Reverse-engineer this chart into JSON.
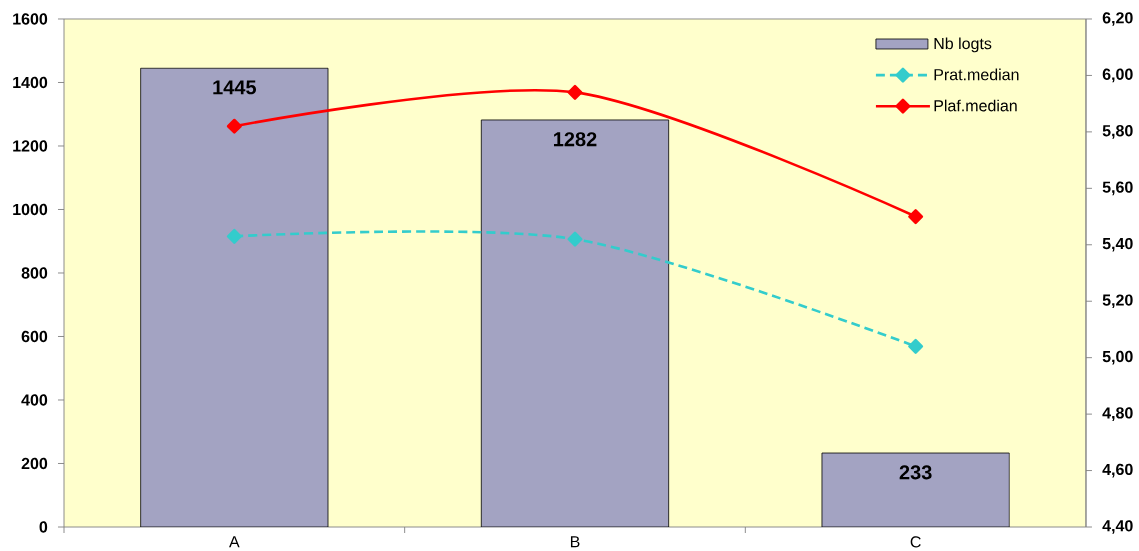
{
  "chart_data": {
    "type": "bar",
    "categories": [
      "A",
      "B",
      "C"
    ],
    "series": [
      {
        "name": "Nb logts",
        "color": "#a3a3c2",
        "values": [
          1445,
          1282,
          233
        ],
        "value_labels": [
          "1445",
          "1282",
          "233"
        ]
      },
      {
        "name": "Prat.median",
        "type": "line",
        "axis": "y2",
        "color": "#33cccc",
        "values": [
          5.43,
          5.42,
          5.04
        ],
        "line_style": "dashed",
        "marker": "diamond"
      },
      {
        "name": "Plaf.median",
        "type": "line",
        "axis": "y2",
        "color": "#ff0000",
        "values": [
          5.82,
          5.94,
          5.5
        ],
        "line_style": "solid",
        "marker": "diamond"
      }
    ],
    "ylim": [
      0,
      1600
    ],
    "yticks": [
      0,
      200,
      400,
      600,
      800,
      1000,
      1200,
      1400,
      1600
    ],
    "y2lim": [
      4.4,
      6.2
    ],
    "y2ticks": [
      {
        "value": 4.4,
        "label": "4,40"
      },
      {
        "value": 4.6,
        "label": "4,60"
      },
      {
        "value": 4.8,
        "label": "4,80"
      },
      {
        "value": 5.0,
        "label": "5,00"
      },
      {
        "value": 5.2,
        "label": "5,20"
      },
      {
        "value": 5.4,
        "label": "5,40"
      },
      {
        "value": 5.6,
        "label": "5,60"
      },
      {
        "value": 5.8,
        "label": "5,80"
      },
      {
        "value": 6.0,
        "label": "6,00"
      },
      {
        "value": 6.2,
        "label": "6,20"
      }
    ],
    "legend": "top right"
  }
}
